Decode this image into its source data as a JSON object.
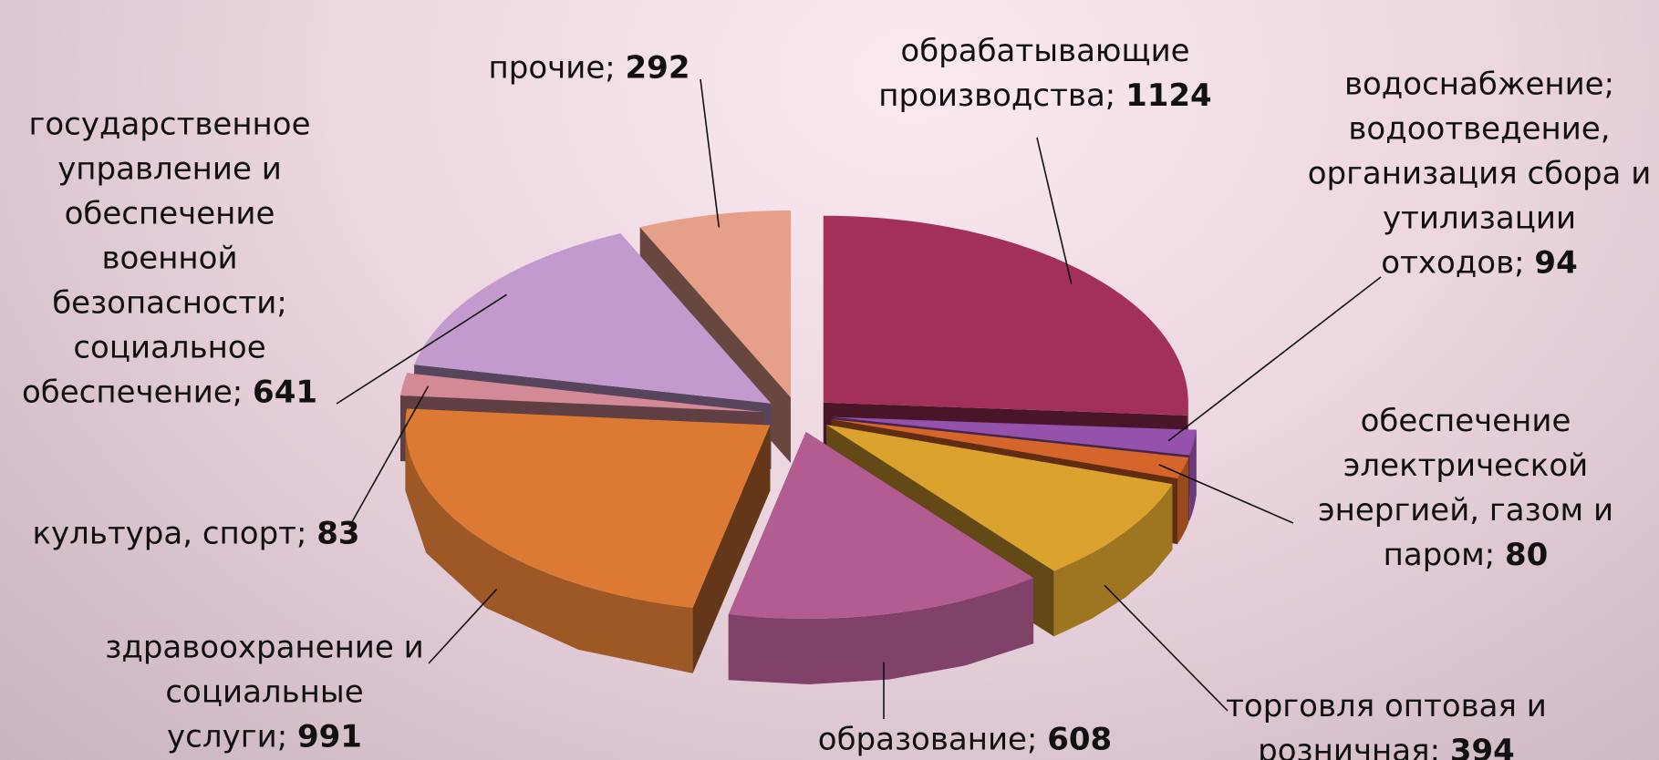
{
  "chart_data": {
    "type": "pie",
    "categories": [
      "обрабатывающие производства",
      "водоснабжение; водоотведение, организация сбора и утилизации отходов",
      "обеспечение электрической энергией, газом и паром",
      "торговля оптовая и розничная",
      "образование",
      "здравоохранение и социальные услуги",
      "культура, спорт",
      "государственное управление и обеспечение военной безопасности; социальное обеспечение",
      "прочие"
    ],
    "values": [
      1124,
      94,
      80,
      394,
      608,
      991,
      83,
      641,
      292
    ],
    "separator": "; ",
    "colors": [
      "#a2305a",
      "#9452ac",
      "#d5652a",
      "#dba22e",
      "#b35c92",
      "#dc7a34",
      "#d48a96",
      "#c29ace",
      "#e6a08a"
    ]
  }
}
